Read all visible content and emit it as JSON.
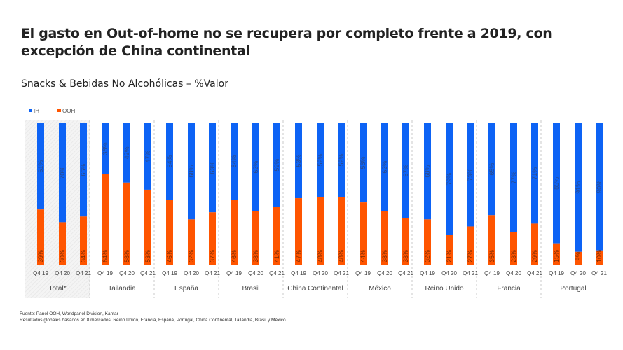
{
  "title": "El gasto en Out-of-home no se recupera por completo frente a 2019, con excepción de China continental",
  "subtitle": "Snacks & Bebidas No Alcohólicas – %Valor",
  "footnotes": {
    "source": "Fuente: Panel OOH, Worldpanel Division, Kantar",
    "note": "Resultados globales basados en 8 mercados: Reino Unido, Francia, España, Portugal, China Continental, Tailandia, Brasil y México"
  },
  "chart_data": {
    "type": "bar",
    "stacked": true,
    "percent_stacked": true,
    "legend": {
      "placement": "top-left",
      "items": [
        {
          "name": "IH",
          "color": "#0d63f5"
        },
        {
          "name": "OOH",
          "color": "#ff5500"
        }
      ]
    },
    "periods": [
      "Q4 19",
      "Q4 20",
      "Q4 21"
    ],
    "groups": [
      {
        "name": "Total*",
        "IH": [
          61,
          70,
          66
        ],
        "OOH": [
          39,
          30,
          34
        ],
        "IH_labels": [
          "61%",
          "70%",
          "66%"
        ],
        "OOH_labels": [
          "39%",
          "30%",
          "34%"
        ]
      },
      {
        "name": "Tailandia",
        "IH": [
          36,
          42,
          47
        ],
        "OOH": [
          64,
          58,
          53
        ],
        "IH_labels": [
          "36%",
          "42%",
          "47%"
        ],
        "OOH_labels": [
          "64%",
          "58%",
          "53%"
        ]
      },
      {
        "name": "España",
        "IH": [
          54,
          68,
          63
        ],
        "OOH": [
          46,
          32,
          37
        ],
        "IH_labels": [
          "54%",
          "68%",
          "63%"
        ],
        "OOH_labels": [
          "46%",
          "32%",
          "37%"
        ]
      },
      {
        "name": "Brasil",
        "IH": [
          54,
          62,
          59
        ],
        "OOH": [
          46,
          38,
          41
        ],
        "IH_labels": [
          "54%",
          "62%",
          "59%"
        ],
        "OOH_labels": [
          "46%",
          "38%",
          "41%"
        ]
      },
      {
        "name": "China Continental",
        "IH": [
          53,
          52,
          52
        ],
        "OOH": [
          47,
          48,
          48
        ],
        "IH_labels": [
          "53%",
          "52%",
          "52%"
        ],
        "OOH_labels": [
          "47%",
          "48%",
          "48%"
        ]
      },
      {
        "name": "México",
        "IH": [
          56,
          62,
          67
        ],
        "OOH": [
          44,
          38,
          33
        ],
        "IH_labels": [
          "56%",
          "62%",
          "67%"
        ],
        "OOH_labels": [
          "44%",
          "38%",
          "33%"
        ]
      },
      {
        "name": "Reino Unido",
        "IH": [
          68,
          79,
          73
        ],
        "OOH": [
          32,
          21,
          27
        ],
        "IH_labels": [
          "68%",
          "79%",
          "73%"
        ],
        "OOH_labels": [
          "32%",
          "21%",
          "27%"
        ]
      },
      {
        "name": "Francia",
        "IH": [
          65,
          77,
          71
        ],
        "OOH": [
          35,
          23,
          29
        ],
        "IH_labels": [
          "65%",
          "77%",
          "71%"
        ],
        "OOH_labels": [
          "35%",
          "23%",
          "29%"
        ]
      },
      {
        "name": "Portugal",
        "IH": [
          85,
          91,
          90
        ],
        "OOH": [
          15,
          9,
          10
        ],
        "IH_labels": [
          "85%",
          "91%",
          "90%"
        ],
        "OOH_labels": [
          "15%",
          "9%",
          "10%"
        ]
      }
    ],
    "ylim": [
      0,
      100
    ],
    "grid": false
  }
}
